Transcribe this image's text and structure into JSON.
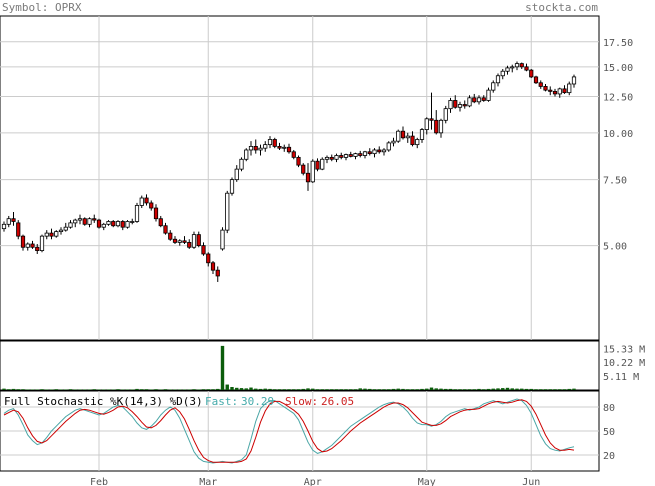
{
  "header": {
    "symbol_text": "Symbol: OPRX",
    "site_text": "stockta.com"
  },
  "colors": {
    "up_fill": "#ffffff",
    "down_fill": "#cc0000",
    "candle_line": "#000000",
    "volume": "#0b5d0b",
    "fast_line": "#4aa6a6",
    "slow_line": "#cc0000",
    "grid": "#cccccc",
    "fast_label": "#44aaaa",
    "slow_label": "#cc2222"
  },
  "chart_data": [
    {
      "type": "candlestick",
      "scale": "log",
      "ylim": [
        2.8,
        20.5
      ],
      "y_ticks": [
        5.0,
        7.5,
        10.0,
        12.5,
        15.0,
        17.5
      ],
      "y_tick_labels": [
        "5.00",
        "7.50",
        "10.00",
        "12.50",
        "15.00",
        "17.50"
      ],
      "x_tick_labels": [
        "Feb",
        "Mar",
        "Apr",
        "May",
        "Jun"
      ],
      "x_tick_index": [
        20,
        43,
        65,
        89,
        111
      ],
      "grid": true,
      "ohlc": [
        [
          5.55,
          5.8,
          5.45,
          5.7
        ],
        [
          5.7,
          6.0,
          5.6,
          5.9
        ],
        [
          5.9,
          6.15,
          5.65,
          5.8
        ],
        [
          5.75,
          5.85,
          5.2,
          5.3
        ],
        [
          5.3,
          5.35,
          4.85,
          4.95
        ],
        [
          4.95,
          5.1,
          4.85,
          5.05
        ],
        [
          5.05,
          5.15,
          4.9,
          4.95
        ],
        [
          4.95,
          5.05,
          4.75,
          4.85
        ],
        [
          4.85,
          5.35,
          4.8,
          5.3
        ],
        [
          5.3,
          5.5,
          5.2,
          5.4
        ],
        [
          5.4,
          5.55,
          5.2,
          5.3
        ],
        [
          5.3,
          5.5,
          5.25,
          5.45
        ],
        [
          5.45,
          5.6,
          5.35,
          5.5
        ],
        [
          5.5,
          5.75,
          5.45,
          5.6
        ],
        [
          5.6,
          5.85,
          5.55,
          5.75
        ],
        [
          5.75,
          5.9,
          5.6,
          5.85
        ],
        [
          5.85,
          6.05,
          5.7,
          5.9
        ],
        [
          5.9,
          5.95,
          5.65,
          5.7
        ],
        [
          5.7,
          5.95,
          5.6,
          5.9
        ],
        [
          5.9,
          6.05,
          5.75,
          5.85
        ],
        [
          5.85,
          5.9,
          5.55,
          5.6
        ],
        [
          5.6,
          5.75,
          5.5,
          5.7
        ],
        [
          5.7,
          5.85,
          5.65,
          5.8
        ],
        [
          5.8,
          5.85,
          5.6,
          5.65
        ],
        [
          5.65,
          5.85,
          5.6,
          5.8
        ],
        [
          5.8,
          5.85,
          5.5,
          5.6
        ],
        [
          5.6,
          5.85,
          5.55,
          5.8
        ],
        [
          5.8,
          5.9,
          5.7,
          5.8
        ],
        [
          5.8,
          6.5,
          5.75,
          6.4
        ],
        [
          6.4,
          6.8,
          6.3,
          6.7
        ],
        [
          6.7,
          6.85,
          6.4,
          6.5
        ],
        [
          6.5,
          6.6,
          6.2,
          6.3
        ],
        [
          6.3,
          6.45,
          5.8,
          5.9
        ],
        [
          5.9,
          6.0,
          5.6,
          5.65
        ],
        [
          5.65,
          5.75,
          5.35,
          5.4
        ],
        [
          5.4,
          5.5,
          5.15,
          5.2
        ],
        [
          5.2,
          5.3,
          5.05,
          5.1
        ],
        [
          5.1,
          5.2,
          5.0,
          5.15
        ],
        [
          5.15,
          5.3,
          5.05,
          5.1
        ],
        [
          5.1,
          5.2,
          4.9,
          4.95
        ],
        [
          4.95,
          5.45,
          4.9,
          5.35
        ],
        [
          5.35,
          5.45,
          4.95,
          5.0
        ],
        [
          5.0,
          5.1,
          4.7,
          4.75
        ],
        [
          4.75,
          4.8,
          4.4,
          4.5
        ],
        [
          4.5,
          4.55,
          4.2,
          4.3
        ],
        [
          4.3,
          4.4,
          4.0,
          4.15
        ],
        [
          4.9,
          5.6,
          4.85,
          5.5
        ],
        [
          5.5,
          7.0,
          5.4,
          6.9
        ],
        [
          6.9,
          7.6,
          6.8,
          7.5
        ],
        [
          7.5,
          8.2,
          7.4,
          8.0
        ],
        [
          8.0,
          8.6,
          7.9,
          8.5
        ],
        [
          8.5,
          9.1,
          8.4,
          9.0
        ],
        [
          9.0,
          9.5,
          8.7,
          9.2
        ],
        [
          9.2,
          9.6,
          8.8,
          9.0
        ],
        [
          9.0,
          9.3,
          8.7,
          9.1
        ],
        [
          9.1,
          9.5,
          8.9,
          9.3
        ],
        [
          9.3,
          9.8,
          9.1,
          9.6
        ],
        [
          9.6,
          9.7,
          9.1,
          9.2
        ],
        [
          9.2,
          9.4,
          9.0,
          9.1
        ],
        [
          9.1,
          9.3,
          8.9,
          9.15
        ],
        [
          9.15,
          9.35,
          8.8,
          8.9
        ],
        [
          8.9,
          9.0,
          8.5,
          8.6
        ],
        [
          8.6,
          8.7,
          8.1,
          8.2
        ],
        [
          8.2,
          8.3,
          7.7,
          7.8
        ],
        [
          7.8,
          8.3,
          7.0,
          7.4
        ],
        [
          7.4,
          8.5,
          7.35,
          8.4
        ],
        [
          8.4,
          8.55,
          7.9,
          8.0
        ],
        [
          8.0,
          8.6,
          7.95,
          8.5
        ],
        [
          8.5,
          8.7,
          8.3,
          8.6
        ],
        [
          8.6,
          8.75,
          8.4,
          8.5
        ],
        [
          8.5,
          8.8,
          8.35,
          8.7
        ],
        [
          8.7,
          8.85,
          8.5,
          8.6
        ],
        [
          8.6,
          8.8,
          8.45,
          8.75
        ],
        [
          8.75,
          8.9,
          8.6,
          8.65
        ],
        [
          8.65,
          8.85,
          8.5,
          8.8
        ],
        [
          8.8,
          8.95,
          8.6,
          8.7
        ],
        [
          8.7,
          8.95,
          8.55,
          8.9
        ],
        [
          8.9,
          9.1,
          8.7,
          8.8
        ],
        [
          8.8,
          9.1,
          8.6,
          9.0
        ],
        [
          9.0,
          9.2,
          8.8,
          8.9
        ],
        [
          8.9,
          9.1,
          8.7,
          9.0
        ],
        [
          9.0,
          9.5,
          8.9,
          9.4
        ],
        [
          9.4,
          9.7,
          9.2,
          9.5
        ],
        [
          9.5,
          10.2,
          9.4,
          10.1
        ],
        [
          10.1,
          10.4,
          9.6,
          9.7
        ],
        [
          9.7,
          10.0,
          9.4,
          9.8
        ],
        [
          9.8,
          10.1,
          9.2,
          9.3
        ],
        [
          9.3,
          9.7,
          9.1,
          9.6
        ],
        [
          9.6,
          10.3,
          9.4,
          10.2
        ],
        [
          10.2,
          11.0,
          9.9,
          10.9
        ],
        [
          10.9,
          12.8,
          10.2,
          10.8
        ],
        [
          10.8,
          11.5,
          9.9,
          10.0
        ],
        [
          10.0,
          10.9,
          9.7,
          10.8
        ],
        [
          10.8,
          11.8,
          10.6,
          11.6
        ],
        [
          11.6,
          12.4,
          11.3,
          12.2
        ],
        [
          12.2,
          12.6,
          11.6,
          11.7
        ],
        [
          11.7,
          12.1,
          11.4,
          11.9
        ],
        [
          11.9,
          12.2,
          11.6,
          11.8
        ],
        [
          11.8,
          12.6,
          11.7,
          12.4
        ],
        [
          12.4,
          12.7,
          12.0,
          12.1
        ],
        [
          12.1,
          12.6,
          11.9,
          12.4
        ],
        [
          12.4,
          12.6,
          12.1,
          12.2
        ],
        [
          12.2,
          13.2,
          12.1,
          13.0
        ],
        [
          13.0,
          13.8,
          12.8,
          13.6
        ],
        [
          13.6,
          14.4,
          13.3,
          14.2
        ],
        [
          14.2,
          14.8,
          13.9,
          14.6
        ],
        [
          14.6,
          15.1,
          14.3,
          14.9
        ],
        [
          14.9,
          15.2,
          14.5,
          15.0
        ],
        [
          15.0,
          15.5,
          14.7,
          15.3
        ],
        [
          15.3,
          15.4,
          14.8,
          15.0
        ],
        [
          15.0,
          15.3,
          14.6,
          14.7
        ],
        [
          14.7,
          14.8,
          14.0,
          14.1
        ],
        [
          14.1,
          14.2,
          13.5,
          13.6
        ],
        [
          13.6,
          13.8,
          13.1,
          13.3
        ],
        [
          13.3,
          13.5,
          12.9,
          13.0
        ],
        [
          13.0,
          13.3,
          12.6,
          12.9
        ],
        [
          12.9,
          13.1,
          12.5,
          12.7
        ],
        [
          12.7,
          13.2,
          12.4,
          13.1
        ],
        [
          13.1,
          13.4,
          12.7,
          12.8
        ],
        [
          12.8,
          13.7,
          12.6,
          13.5
        ],
        [
          13.5,
          14.3,
          13.2,
          14.1
        ]
      ]
    },
    {
      "type": "bar",
      "name": "volume",
      "ylim": [
        0,
        18000000
      ],
      "y_ticks": [
        5110000,
        10220000,
        15330000
      ],
      "y_tick_labels": [
        "5.11 M",
        "10.22 M",
        "15.33 M"
      ],
      "values": [
        0.5,
        0.3,
        0.4,
        0.3,
        0.3,
        0.2,
        0.2,
        0.2,
        0.3,
        0.2,
        0.2,
        0.3,
        0.2,
        0.2,
        0.3,
        0.2,
        0.2,
        0.2,
        0.2,
        0.3,
        0.2,
        0.2,
        0.2,
        0.2,
        0.3,
        0.2,
        0.2,
        0.2,
        0.4,
        0.3,
        0.3,
        0.2,
        0.3,
        0.2,
        0.3,
        0.2,
        0.2,
        0.2,
        0.2,
        0.2,
        0.3,
        0.2,
        0.3,
        0.3,
        0.3,
        0.4,
        16.2,
        2.0,
        1.1,
        0.8,
        0.7,
        0.6,
        0.9,
        0.5,
        0.4,
        0.5,
        0.4,
        0.3,
        0.3,
        0.3,
        0.3,
        0.3,
        0.3,
        0.4,
        0.6,
        0.5,
        0.3,
        0.3,
        0.3,
        0.3,
        0.3,
        0.3,
        0.3,
        0.3,
        0.3,
        0.6,
        0.5,
        0.4,
        0.3,
        0.3,
        0.3,
        0.3,
        0.4,
        0.5,
        0.4,
        0.3,
        0.3,
        0.3,
        0.4,
        0.5,
        0.9,
        0.6,
        0.5,
        0.4,
        0.4,
        0.3,
        0.3,
        0.3,
        0.3,
        0.3,
        0.4,
        0.3,
        0.4,
        0.5,
        0.6,
        0.7,
        0.8,
        0.6,
        0.5,
        0.5,
        0.4,
        0.4,
        0.3,
        0.3,
        0.3,
        0.3,
        0.3,
        0.3,
        0.3,
        0.4,
        0.5
      ],
      "values_unit": "millions"
    },
    {
      "type": "line",
      "title": "Full Stochastic %K(14,3) %D(3)",
      "ylim": [
        0,
        100
      ],
      "y_ticks": [
        20,
        50,
        80
      ],
      "y_tick_labels": [
        "20",
        "50",
        "80"
      ],
      "fast_label": "Fast:",
      "fast_value": "30.29",
      "slow_label": "Slow:",
      "slow_value": "26.05",
      "series": [
        {
          "name": "Fast",
          "values": [
            72,
            76,
            78,
            70,
            58,
            45,
            38,
            33,
            35,
            42,
            50,
            56,
            62,
            68,
            72,
            76,
            78,
            76,
            74,
            72,
            70,
            72,
            76,
            80,
            82,
            80,
            74,
            68,
            60,
            54,
            52,
            56,
            62,
            70,
            76,
            80,
            76,
            66,
            52,
            38,
            24,
            16,
            12,
            11,
            10,
            11,
            12,
            11,
            10,
            12,
            14,
            20,
            40,
            62,
            78,
            84,
            88,
            88,
            84,
            80,
            76,
            72,
            64,
            50,
            36,
            26,
            22,
            24,
            28,
            32,
            38,
            44,
            50,
            56,
            60,
            64,
            68,
            72,
            76,
            80,
            83,
            85,
            86,
            84,
            80,
            74,
            66,
            60,
            58,
            58,
            56,
            58,
            62,
            68,
            72,
            74,
            76,
            78,
            76,
            78,
            80,
            84,
            86,
            88,
            86,
            84,
            86,
            88,
            90,
            88,
            82,
            72,
            58,
            44,
            34,
            28,
            26,
            25,
            27,
            29,
            30.29
          ]
        },
        {
          "name": "Slow",
          "values": [
            70,
            73,
            76,
            74,
            66,
            54,
            44,
            37,
            35,
            38,
            44,
            50,
            56,
            62,
            67,
            72,
            76,
            77,
            76,
            74,
            72,
            71,
            73,
            76,
            80,
            81,
            79,
            74,
            68,
            61,
            55,
            54,
            57,
            63,
            70,
            76,
            79,
            74,
            65,
            52,
            38,
            26,
            17,
            13,
            11,
            11,
            11,
            11,
            11,
            11,
            12,
            15,
            25,
            42,
            61,
            75,
            84,
            87,
            87,
            84,
            80,
            76,
            71,
            62,
            50,
            37,
            28,
            24,
            25,
            28,
            33,
            38,
            44,
            50,
            55,
            60,
            64,
            68,
            72,
            76,
            80,
            83,
            85,
            85,
            83,
            79,
            73,
            67,
            61,
            59,
            57,
            57,
            59,
            63,
            68,
            71,
            74,
            76,
            77,
            77,
            78,
            81,
            84,
            86,
            87,
            86,
            85,
            86,
            88,
            89,
            87,
            81,
            71,
            58,
            45,
            35,
            29,
            26,
            26,
            27,
            26.05
          ]
        }
      ]
    }
  ]
}
